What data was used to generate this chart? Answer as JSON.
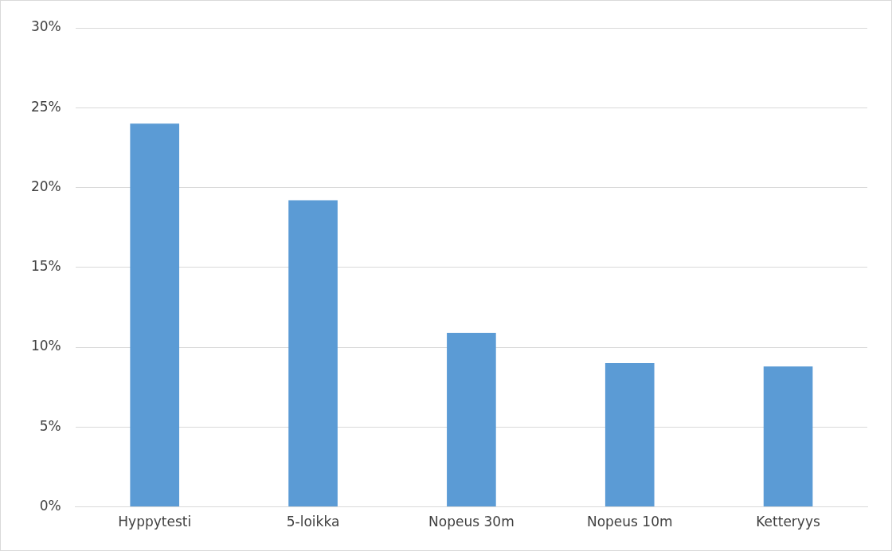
{
  "chart_data": {
    "type": "bar",
    "categories": [
      "Hyppytesti",
      "5-loikka",
      "Nopeus 30m",
      "Nopeus 10m",
      "Ketteryys"
    ],
    "values": [
      24,
      19.2,
      10.9,
      9.0,
      8.8
    ],
    "color": "#5b9bd5",
    "ylim": [
      0,
      30
    ],
    "yticks": [
      {
        "value": 0,
        "label": "0%"
      },
      {
        "value": 5,
        "label": "5%"
      },
      {
        "value": 10,
        "label": "10%"
      },
      {
        "value": 15,
        "label": "15%"
      },
      {
        "value": 20,
        "label": "20%"
      },
      {
        "value": 25,
        "label": "25%"
      },
      {
        "value": 30,
        "label": "30%"
      }
    ],
    "grid": "y"
  }
}
